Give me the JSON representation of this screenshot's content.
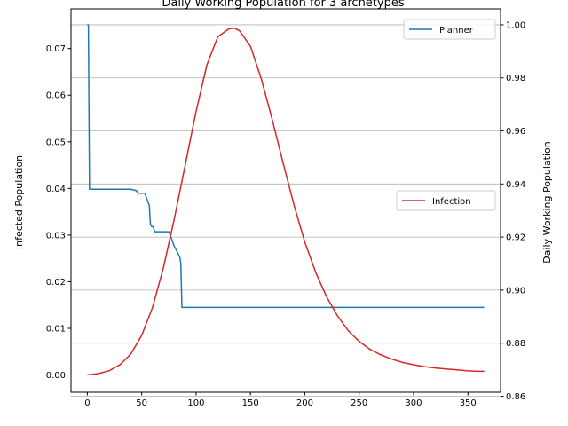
{
  "chart_data": {
    "type": "line",
    "title": "Daily Working Population for 3 archetypes",
    "xlabel": "",
    "ylabel_left": "Infected Population",
    "ylabel_right": "Daily Working Population",
    "xlim": [
      -15,
      380
    ],
    "ylim_left": [
      -0.0037,
      0.0785
    ],
    "ylim_right": [
      0.8615,
      1.006
    ],
    "x_ticks": [
      0,
      50,
      100,
      150,
      200,
      250,
      300,
      350
    ],
    "y_ticks_left": [
      0.0,
      0.01,
      0.02,
      0.03,
      0.04,
      0.05,
      0.06,
      0.07
    ],
    "y_ticks_right": [
      0.86,
      0.88,
      0.9,
      0.92,
      0.94,
      0.96,
      0.98,
      1.0
    ],
    "grid": "horizontal on right axis",
    "series": [
      {
        "name": "Planner",
        "axis": "right",
        "color": "#1f77b4",
        "legend": "top-right",
        "x": [
          0,
          1,
          2,
          10,
          20,
          30,
          40,
          45,
          47,
          50,
          53,
          55,
          57,
          58,
          59,
          60,
          61,
          62,
          63,
          64,
          65,
          70,
          75,
          76,
          80,
          85,
          86,
          87,
          90,
          100,
          110,
          115,
          120,
          125,
          130,
          135,
          140,
          145,
          148,
          150,
          160,
          170,
          180,
          181,
          182,
          183,
          184,
          190,
          200,
          205,
          210,
          215,
          220,
          221,
          222,
          225,
          226,
          227,
          228,
          230,
          235,
          238,
          240,
          245,
          250,
          252,
          255,
          260,
          265,
          270,
          280,
          290,
          300,
          310,
          320,
          330,
          340,
          350,
          360,
          365
        ],
        "values": [
          1.0,
          1.0,
          0.938,
          0.938,
          0.938,
          0.938,
          0.938,
          0.9375,
          0.9365,
          0.9365,
          0.9365,
          0.934,
          0.932,
          0.925,
          0.924,
          0.924,
          0.9235,
          0.922,
          0.922,
          0.922,
          0.922,
          0.922,
          0.922,
          0.921,
          0.9165,
          0.9125,
          0.91,
          0.8935,
          0.8935,
          0.8935,
          0.8935,
          0.8935,
          0.8935,
          0.8935,
          0.8935,
          0.8935,
          0.8935,
          0.8935,
          0.8935,
          0.8935,
          0.8935,
          0.8935,
          0.8935,
          0.8935,
          0.8935,
          0.8935,
          0.8935,
          0.8935,
          0.8935,
          0.8935,
          0.8935,
          0.8935,
          0.8935,
          0.8935,
          0.8935,
          0.8935,
          0.8935,
          0.8935,
          0.8935,
          0.8935,
          0.8935,
          0.8935,
          0.8935,
          0.8935,
          0.8935,
          0.8935,
          0.8935,
          0.8935,
          0.8935,
          0.8935,
          0.8935,
          0.8935,
          0.8935,
          0.8935,
          0.8935,
          0.8935,
          0.8935,
          0.8935,
          0.8935,
          0.8935
        ]
      },
      {
        "name": "Infection",
        "axis": "left",
        "color": "#d62728",
        "legend": "center-right",
        "x": [
          0,
          10,
          20,
          30,
          40,
          50,
          60,
          70,
          80,
          90,
          100,
          110,
          120,
          130,
          135,
          140,
          150,
          160,
          170,
          180,
          190,
          200,
          210,
          220,
          230,
          240,
          250,
          260,
          270,
          280,
          290,
          300,
          310,
          320,
          330,
          340,
          350,
          360,
          365
        ],
        "values": [
          0.0,
          0.0003,
          0.0009,
          0.0022,
          0.0045,
          0.0085,
          0.0145,
          0.023,
          0.0335,
          0.045,
          0.0565,
          0.0665,
          0.0725,
          0.0742,
          0.0744,
          0.0738,
          0.0705,
          0.0635,
          0.0548,
          0.0455,
          0.0365,
          0.0285,
          0.022,
          0.0168,
          0.0127,
          0.0095,
          0.0072,
          0.0055,
          0.0043,
          0.0034,
          0.0027,
          0.0022,
          0.0018,
          0.0015,
          0.0013,
          0.0011,
          0.0009,
          0.0008,
          0.0008
        ]
      }
    ]
  }
}
